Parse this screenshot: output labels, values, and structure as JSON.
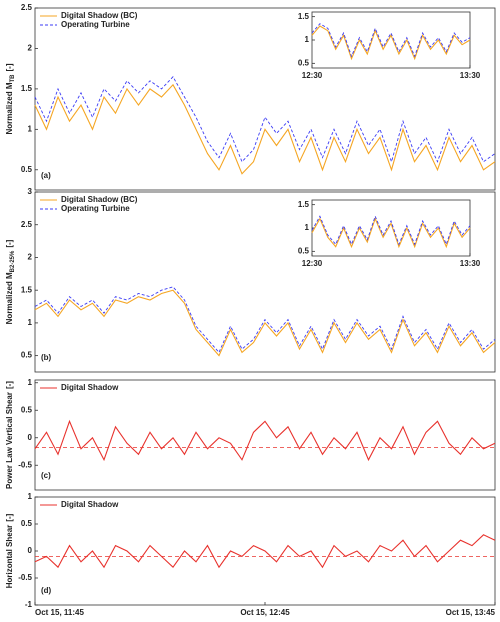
{
  "chart_data": [
    {
      "type": "line",
      "panel_label": "(a)",
      "y_label": "Normalized M",
      "y_label_sub": "TB",
      "y_label_unit": "[-]",
      "x": [
        "11:45",
        "11:48",
        "11:51",
        "11:54",
        "11:57",
        "12:00",
        "12:03",
        "12:06",
        "12:09",
        "12:12",
        "12:15",
        "12:18",
        "12:21",
        "12:24",
        "12:27",
        "12:30",
        "12:33",
        "12:36",
        "12:39",
        "12:42",
        "12:45",
        "12:48",
        "12:51",
        "12:54",
        "12:57",
        "13:00",
        "13:03",
        "13:06",
        "13:09",
        "13:12",
        "13:15",
        "13:18",
        "13:21",
        "13:24",
        "13:27",
        "13:30",
        "13:33",
        "13:36",
        "13:39",
        "13:42",
        "13:45"
      ],
      "xlim": [
        "11:45",
        "13:45"
      ],
      "ylim": [
        0.25,
        2.5
      ],
      "yticks": [
        0.5,
        1,
        1.5,
        2,
        2.5
      ],
      "series": [
        {
          "name": "Digital Shadow (BC)",
          "color": "#f5a623",
          "values": [
            1.3,
            1.0,
            1.4,
            1.1,
            1.3,
            1.0,
            1.4,
            1.2,
            1.5,
            1.3,
            1.5,
            1.4,
            1.55,
            1.3,
            1.0,
            0.7,
            0.5,
            0.8,
            0.45,
            0.6,
            1.0,
            0.8,
            1.0,
            0.6,
            0.9,
            0.5,
            0.9,
            0.6,
            1.0,
            0.7,
            0.9,
            0.5,
            1.0,
            0.6,
            0.8,
            0.5,
            0.9,
            0.6,
            0.8,
            0.5,
            0.6
          ]
        },
        {
          "name": "Operating Turbine",
          "color": "#3b3bf5",
          "dashed": true,
          "values": [
            1.4,
            1.1,
            1.5,
            1.2,
            1.45,
            1.15,
            1.5,
            1.35,
            1.6,
            1.45,
            1.6,
            1.5,
            1.65,
            1.4,
            1.15,
            0.85,
            0.65,
            0.95,
            0.6,
            0.75,
            1.15,
            0.95,
            1.1,
            0.75,
            1.0,
            0.65,
            1.0,
            0.7,
            1.1,
            0.8,
            1.0,
            0.6,
            1.1,
            0.7,
            0.9,
            0.6,
            1.0,
            0.7,
            0.9,
            0.6,
            0.7
          ]
        }
      ],
      "inset": {
        "x": [
          "12:30",
          "12:33",
          "12:36",
          "12:39",
          "12:42",
          "12:45",
          "12:48",
          "12:51",
          "12:54",
          "12:57",
          "13:00",
          "13:03",
          "13:06",
          "13:09",
          "13:12",
          "13:15",
          "13:18",
          "13:21",
          "13:24",
          "13:27",
          "13:30"
        ],
        "xlim": [
          "12:30",
          "13:30"
        ],
        "xticks": [
          "12:30",
          "13:30"
        ],
        "ylim": [
          0.4,
          1.6
        ],
        "yticks": [
          0.5,
          1,
          1.5
        ],
        "series": [
          {
            "color": "#f5a623",
            "values": [
              1.1,
              1.3,
              1.2,
              0.8,
              1.1,
              0.6,
              1.0,
              0.7,
              1.2,
              0.8,
              1.1,
              0.7,
              1.0,
              0.6,
              1.1,
              0.8,
              1.0,
              0.7,
              1.1,
              0.9,
              1.0
            ]
          },
          {
            "color": "#3b3bf5",
            "dashed": true,
            "values": [
              1.15,
              1.35,
              1.25,
              0.85,
              1.15,
              0.65,
              1.05,
              0.75,
              1.25,
              0.85,
              1.15,
              0.75,
              1.05,
              0.65,
              1.15,
              0.85,
              1.05,
              0.75,
              1.15,
              0.95,
              1.05
            ]
          }
        ]
      }
    },
    {
      "type": "line",
      "panel_label": "(b)",
      "y_label": "Normalized M",
      "y_label_sub": "B2-25%",
      "y_label_unit": "[-]",
      "x": [
        "11:45",
        "11:48",
        "11:51",
        "11:54",
        "11:57",
        "12:00",
        "12:03",
        "12:06",
        "12:09",
        "12:12",
        "12:15",
        "12:18",
        "12:21",
        "12:24",
        "12:27",
        "12:30",
        "12:33",
        "12:36",
        "12:39",
        "12:42",
        "12:45",
        "12:48",
        "12:51",
        "12:54",
        "12:57",
        "13:00",
        "13:03",
        "13:06",
        "13:09",
        "13:12",
        "13:15",
        "13:18",
        "13:21",
        "13:24",
        "13:27",
        "13:30",
        "13:33",
        "13:36",
        "13:39",
        "13:42",
        "13:45"
      ],
      "xlim": [
        "11:45",
        "13:45"
      ],
      "ylim": [
        0.25,
        3
      ],
      "yticks": [
        0.5,
        1,
        1.5,
        2,
        2.5,
        3
      ],
      "series": [
        {
          "name": "Digital Shadow (BC)",
          "color": "#f5a623",
          "values": [
            1.2,
            1.3,
            1.1,
            1.35,
            1.2,
            1.3,
            1.1,
            1.35,
            1.3,
            1.4,
            1.35,
            1.45,
            1.5,
            1.3,
            0.9,
            0.7,
            0.5,
            0.9,
            0.55,
            0.7,
            1.0,
            0.8,
            1.0,
            0.6,
            0.9,
            0.55,
            1.0,
            0.7,
            1.0,
            0.75,
            0.9,
            0.55,
            1.05,
            0.65,
            0.85,
            0.55,
            0.95,
            0.65,
            0.85,
            0.55,
            0.7
          ]
        },
        {
          "name": "Operating Turbine",
          "color": "#3b3bf5",
          "dashed": true,
          "values": [
            1.25,
            1.35,
            1.15,
            1.4,
            1.25,
            1.35,
            1.15,
            1.4,
            1.35,
            1.45,
            1.4,
            1.5,
            1.55,
            1.35,
            0.95,
            0.75,
            0.55,
            0.95,
            0.6,
            0.75,
            1.05,
            0.85,
            1.05,
            0.65,
            0.95,
            0.6,
            1.05,
            0.75,
            1.05,
            0.8,
            0.95,
            0.6,
            1.1,
            0.7,
            0.9,
            0.6,
            1.0,
            0.7,
            0.9,
            0.6,
            0.75
          ]
        }
      ],
      "inset": {
        "x": [
          "12:30",
          "12:33",
          "12:36",
          "12:39",
          "12:42",
          "12:45",
          "12:48",
          "12:51",
          "12:54",
          "12:57",
          "13:00",
          "13:03",
          "13:06",
          "13:09",
          "13:12",
          "13:15",
          "13:18",
          "13:21",
          "13:24",
          "13:27",
          "13:30"
        ],
        "xlim": [
          "12:30",
          "13:30"
        ],
        "xticks": [
          "12:30",
          "13:30"
        ],
        "ylim": [
          0.4,
          1.6
        ],
        "yticks": [
          0.5,
          1,
          1.5
        ],
        "series": [
          {
            "color": "#f5a623",
            "values": [
              0.9,
              1.2,
              0.8,
              0.6,
              1.0,
              0.6,
              1.0,
              0.7,
              1.2,
              0.8,
              1.1,
              0.6,
              1.0,
              0.6,
              1.1,
              0.8,
              1.0,
              0.6,
              1.1,
              0.8,
              1.0
            ]
          },
          {
            "color": "#3b3bf5",
            "dashed": true,
            "values": [
              0.95,
              1.25,
              0.85,
              0.65,
              1.05,
              0.65,
              1.05,
              0.75,
              1.25,
              0.85,
              1.15,
              0.65,
              1.05,
              0.65,
              1.15,
              0.85,
              1.05,
              0.65,
              1.15,
              0.85,
              1.05
            ]
          }
        ]
      }
    },
    {
      "type": "line",
      "panel_label": "(c)",
      "y_label": "Power Law Vertical Shear",
      "y_label_unit": "[-]",
      "x": [
        "11:45",
        "11:48",
        "11:51",
        "11:54",
        "11:57",
        "12:00",
        "12:03",
        "12:06",
        "12:09",
        "12:12",
        "12:15",
        "12:18",
        "12:21",
        "12:24",
        "12:27",
        "12:30",
        "12:33",
        "12:36",
        "12:39",
        "12:42",
        "12:45",
        "12:48",
        "12:51",
        "12:54",
        "12:57",
        "13:00",
        "13:03",
        "13:06",
        "13:09",
        "13:12",
        "13:15",
        "13:18",
        "13:21",
        "13:24",
        "13:27",
        "13:30",
        "13:33",
        "13:36",
        "13:39",
        "13:42",
        "13:45"
      ],
      "xlim": [
        "11:45",
        "13:45"
      ],
      "ylim": [
        -0.95,
        1.05
      ],
      "yticks": [
        -0.5,
        0,
        0.5,
        1
      ],
      "mean_line": -0.18,
      "series": [
        {
          "name": "Digital Shadow",
          "color": "#e8322d",
          "values": [
            -0.2,
            0.1,
            -0.3,
            0.3,
            -0.2,
            0.0,
            -0.4,
            0.2,
            -0.1,
            -0.3,
            0.1,
            -0.2,
            0.0,
            -0.3,
            0.1,
            -0.2,
            0.0,
            -0.1,
            -0.4,
            0.1,
            0.3,
            0.0,
            0.2,
            -0.2,
            0.1,
            -0.3,
            0.0,
            -0.2,
            0.1,
            -0.4,
            0.0,
            -0.2,
            0.2,
            -0.3,
            0.1,
            0.3,
            -0.1,
            -0.3,
            0.0,
            -0.2,
            -0.1
          ]
        }
      ]
    },
    {
      "type": "line",
      "panel_label": "(d)",
      "y_label": "Horizontal Shear",
      "y_label_unit": "[-]",
      "x": [
        "11:45",
        "11:48",
        "11:51",
        "11:54",
        "11:57",
        "12:00",
        "12:03",
        "12:06",
        "12:09",
        "12:12",
        "12:15",
        "12:18",
        "12:21",
        "12:24",
        "12:27",
        "12:30",
        "12:33",
        "12:36",
        "12:39",
        "12:42",
        "12:45",
        "12:48",
        "12:51",
        "12:54",
        "12:57",
        "13:00",
        "13:03",
        "13:06",
        "13:09",
        "13:12",
        "13:15",
        "13:18",
        "13:21",
        "13:24",
        "13:27",
        "13:30",
        "13:33",
        "13:36",
        "13:39",
        "13:42",
        "13:45"
      ],
      "xlim": [
        "11:45",
        "13:45"
      ],
      "ylim": [
        -1,
        1
      ],
      "yticks": [
        -1,
        -0.5,
        0,
        0.5,
        1
      ],
      "mean_line": -0.1,
      "xticks": [
        {
          "value": "11:45",
          "label": "Oct 15, 11:45"
        },
        {
          "value": "12:45",
          "label": "Oct 15, 12:45"
        },
        {
          "value": "13:45",
          "label": "Oct 15, 13:45"
        }
      ],
      "series": [
        {
          "name": "Digital Shadow",
          "color": "#e8322d",
          "values": [
            -0.2,
            -0.1,
            -0.3,
            0.1,
            -0.2,
            0.0,
            -0.3,
            0.1,
            0.0,
            -0.2,
            0.1,
            -0.1,
            -0.3,
            0.0,
            -0.2,
            0.1,
            -0.3,
            0.0,
            -0.1,
            0.1,
            0.0,
            -0.2,
            0.1,
            -0.1,
            0.0,
            -0.3,
            0.1,
            -0.1,
            0.0,
            -0.2,
            0.1,
            0.0,
            0.2,
            -0.1,
            0.1,
            -0.2,
            0.0,
            0.2,
            0.1,
            0.3,
            0.2
          ]
        }
      ]
    }
  ]
}
